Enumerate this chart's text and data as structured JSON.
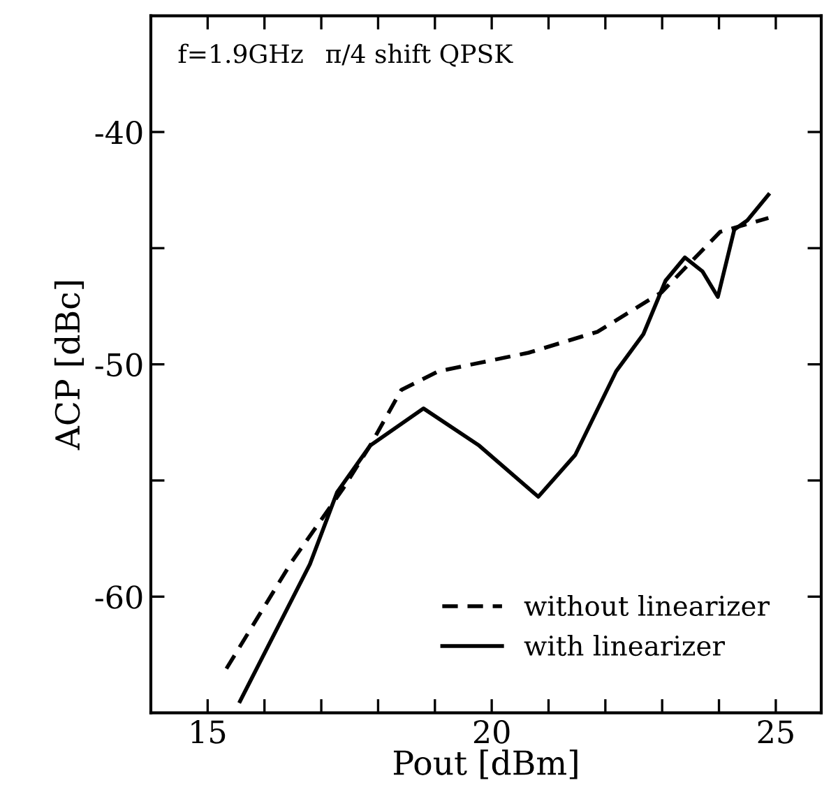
{
  "chart_data": {
    "type": "line",
    "xlabel": "Pout [dBm]",
    "ylabel": "ACP [dBc]",
    "annotations": [
      "f=1.9GHz",
      "π/4 shift QPSK"
    ],
    "xlim": [
      14,
      25.8
    ],
    "ylim": [
      -65,
      -35
    ],
    "xticks": [
      15,
      {
        "value": 16,
        "label": null
      },
      {
        "value": 17,
        "label": null
      },
      {
        "value": 18,
        "label": null
      },
      {
        "value": 19,
        "label": null
      },
      20,
      {
        "value": 21,
        "label": null
      },
      {
        "value": 22,
        "label": null
      },
      {
        "value": 23,
        "label": null
      },
      {
        "value": 24,
        "label": null
      },
      25
    ],
    "yticks": [
      -60,
      {
        "value": -55,
        "label": null
      },
      -50,
      {
        "value": -45,
        "label": null
      },
      -40
    ],
    "grid": false,
    "legend": "bottom right",
    "marker": "none",
    "series": [
      {
        "name": "without linearizer",
        "color": "#000000",
        "line_style": "dashed",
        "x": [
          15.33,
          16.48,
          17.37,
          17.86,
          18.41,
          19.06,
          20.65,
          21.86,
          22.99,
          24.02,
          24.87
        ],
        "values": [
          -63.1,
          -58.5,
          -55.4,
          -53.5,
          -51.1,
          -50.3,
          -49.5,
          -48.6,
          -46.9,
          -44.3,
          -43.7
        ]
      },
      {
        "name": "with linearizer",
        "color": "#000000",
        "line_style": "solid",
        "x": [
          15.57,
          16.8,
          17.28,
          17.86,
          18.8,
          19.78,
          20.82,
          21.47,
          22.19,
          22.67,
          23.06,
          23.4,
          23.71,
          23.98,
          24.27,
          24.5,
          24.87
        ],
        "values": [
          -64.5,
          -58.6,
          -55.5,
          -53.5,
          -51.9,
          -53.5,
          -55.7,
          -53.9,
          -50.3,
          -48.7,
          -46.4,
          -45.4,
          -46.0,
          -47.1,
          -44.2,
          -43.8,
          -42.7
        ]
      }
    ]
  }
}
